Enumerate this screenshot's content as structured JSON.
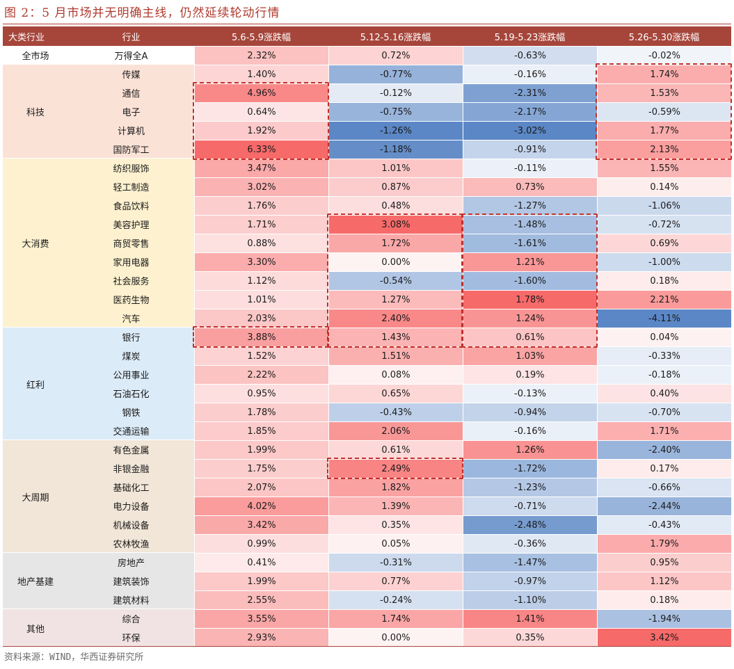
{
  "title": "图 2：5 月市场并无明确主线，仍然延续轮动行情",
  "source": "资料来源：WIND，华西证券研究所",
  "colors": {
    "pos": "#f76a6a",
    "neg": "#5b87c6",
    "header": "#a6463b",
    "title": "#b03a2e"
  },
  "chart_data": {
    "type": "table",
    "columns": [
      "大类行业",
      "行业",
      "5.6-5.9涨跌幅",
      "5.12-5.16涨跌幅",
      "5.19-5.23涨跌幅",
      "5.26-5.30涨跌幅"
    ],
    "groups": [
      {
        "name": "全市场",
        "color": "#ffffff",
        "rows": [
          {
            "industry": "万得全A",
            "values": [
              2.32,
              0.72,
              -0.63,
              -0.02
            ]
          }
        ]
      },
      {
        "name": "科技",
        "color": "#fbe2d7",
        "rows": [
          {
            "industry": "传媒",
            "values": [
              1.4,
              -0.77,
              -0.16,
              1.74
            ]
          },
          {
            "industry": "通信",
            "values": [
              4.96,
              -0.12,
              -2.31,
              1.53
            ]
          },
          {
            "industry": "电子",
            "values": [
              0.64,
              -0.75,
              -2.17,
              -0.59
            ]
          },
          {
            "industry": "计算机",
            "values": [
              1.92,
              -1.26,
              -3.02,
              1.77
            ]
          },
          {
            "industry": "国防军工",
            "values": [
              6.33,
              -1.18,
              -0.91,
              2.13
            ]
          }
        ]
      },
      {
        "name": "大消费",
        "color": "#fdf1cf",
        "rows": [
          {
            "industry": "纺织服饰",
            "values": [
              3.47,
              1.01,
              -0.11,
              1.55
            ]
          },
          {
            "industry": "轻工制造",
            "values": [
              3.02,
              0.87,
              0.73,
              0.14
            ]
          },
          {
            "industry": "食品饮料",
            "values": [
              1.76,
              0.48,
              -1.27,
              -1.06
            ]
          },
          {
            "industry": "美容护理",
            "values": [
              1.71,
              3.08,
              -1.48,
              -0.72
            ]
          },
          {
            "industry": "商贸零售",
            "values": [
              0.88,
              1.72,
              -1.61,
              0.69
            ]
          },
          {
            "industry": "家用电器",
            "values": [
              3.3,
              0.0,
              1.21,
              -1.0
            ]
          },
          {
            "industry": "社会服务",
            "values": [
              1.12,
              -0.54,
              -1.6,
              0.18
            ]
          },
          {
            "industry": "医药生物",
            "values": [
              1.01,
              1.27,
              1.78,
              2.21
            ]
          },
          {
            "industry": "汽车",
            "values": [
              2.03,
              2.4,
              1.24,
              -4.11
            ]
          }
        ]
      },
      {
        "name": "红利",
        "color": "#dcebf8",
        "rows": [
          {
            "industry": "银行",
            "values": [
              3.88,
              1.43,
              0.61,
              0.04
            ]
          },
          {
            "industry": "煤炭",
            "values": [
              1.52,
              1.51,
              1.03,
              -0.33
            ]
          },
          {
            "industry": "公用事业",
            "values": [
              2.22,
              0.08,
              0.19,
              -0.18
            ]
          },
          {
            "industry": "石油石化",
            "values": [
              0.95,
              0.65,
              -0.13,
              0.4
            ]
          },
          {
            "industry": "钢铁",
            "values": [
              1.78,
              -0.43,
              -0.94,
              -0.7
            ]
          },
          {
            "industry": "交通运输",
            "values": [
              1.85,
              2.06,
              -0.16,
              1.71
            ]
          }
        ]
      },
      {
        "name": "大周期",
        "color": "#f1e6d8",
        "rows": [
          {
            "industry": "有色金属",
            "values": [
              1.99,
              0.61,
              1.26,
              -2.4
            ]
          },
          {
            "industry": "非银金融",
            "values": [
              1.75,
              2.49,
              -1.72,
              0.17
            ]
          },
          {
            "industry": "基础化工",
            "values": [
              2.07,
              1.82,
              -1.23,
              -0.66
            ]
          },
          {
            "industry": "电力设备",
            "values": [
              4.02,
              1.39,
              -0.71,
              -2.44
            ]
          },
          {
            "industry": "机械设备",
            "values": [
              3.42,
              0.35,
              -2.48,
              -0.43
            ]
          },
          {
            "industry": "农林牧渔",
            "values": [
              0.99,
              0.05,
              -0.36,
              1.79
            ]
          }
        ]
      },
      {
        "name": "地产基建",
        "color": "#e6e6e6",
        "rows": [
          {
            "industry": "房地产",
            "values": [
              0.41,
              -0.31,
              -1.47,
              0.95
            ]
          },
          {
            "industry": "建筑装饰",
            "values": [
              1.99,
              0.77,
              -0.97,
              1.12
            ]
          },
          {
            "industry": "建筑材料",
            "values": [
              2.55,
              -0.24,
              -1.1,
              0.18
            ]
          }
        ]
      },
      {
        "name": "其他",
        "color": "#f1e3e3",
        "rows": [
          {
            "industry": "综合",
            "values": [
              3.55,
              1.74,
              1.41,
              -1.94
            ]
          },
          {
            "industry": "环保",
            "values": [
              2.93,
              0.0,
              0.35,
              3.42
            ]
          }
        ]
      }
    ],
    "highlights": [
      {
        "column": "5.26-5.30涨跌幅",
        "rows": [
          "传媒",
          "国防军工"
        ]
      },
      {
        "column": "5.6-5.9涨跌幅",
        "rows": [
          "通信",
          "国防军工"
        ]
      },
      {
        "column": "5.12-5.16涨跌幅",
        "rows": [
          "美容护理",
          "银行"
        ]
      },
      {
        "column": "5.19-5.23涨跌幅",
        "rows": [
          "美容护理",
          "银行"
        ]
      },
      {
        "column": "5.6-5.9涨跌幅",
        "rows": [
          "银行",
          "银行"
        ]
      },
      {
        "column": "5.12-5.16涨跌幅",
        "rows": [
          "非银金融",
          "非银金融"
        ]
      }
    ]
  }
}
